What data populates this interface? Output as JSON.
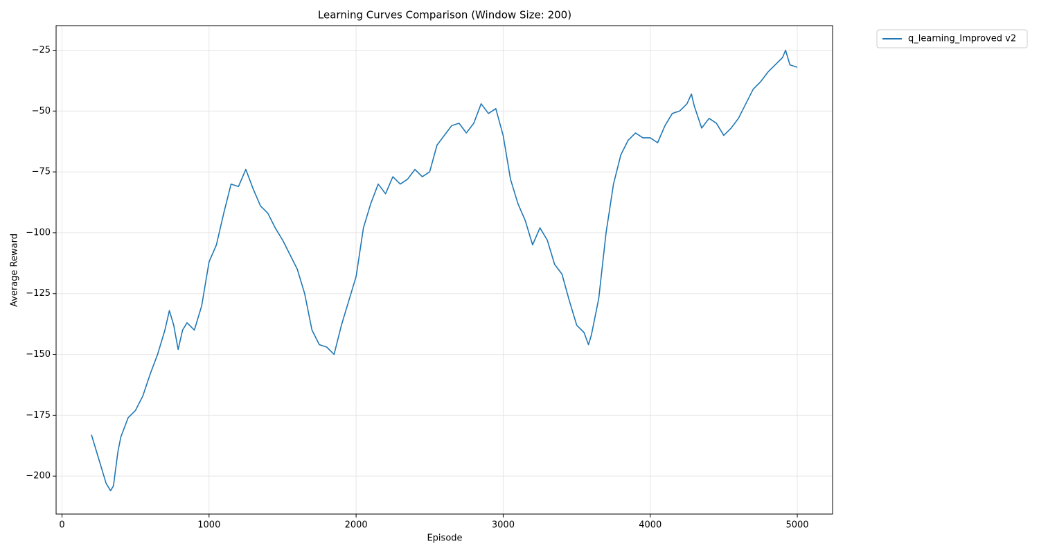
{
  "chart_data": {
    "type": "line",
    "title": "Learning Curves Comparison (Window Size: 200)",
    "x_label": "Episode",
    "y_label": "Average Reward",
    "x": [
      200,
      250,
      300,
      330,
      350,
      380,
      400,
      450,
      500,
      550,
      600,
      650,
      700,
      730,
      760,
      790,
      820,
      850,
      900,
      950,
      1000,
      1050,
      1100,
      1150,
      1200,
      1250,
      1300,
      1350,
      1400,
      1450,
      1500,
      1550,
      1600,
      1650,
      1700,
      1750,
      1800,
      1850,
      1900,
      1950,
      2000,
      2050,
      2100,
      2150,
      2200,
      2250,
      2300,
      2350,
      2400,
      2450,
      2500,
      2550,
      2600,
      2650,
      2700,
      2750,
      2800,
      2850,
      2900,
      2950,
      3000,
      3050,
      3100,
      3150,
      3200,
      3250,
      3300,
      3350,
      3400,
      3450,
      3500,
      3550,
      3580,
      3600,
      3650,
      3700,
      3750,
      3800,
      3850,
      3900,
      3950,
      4000,
      4050,
      4100,
      4150,
      4200,
      4250,
      4280,
      4300,
      4350,
      4400,
      4450,
      4500,
      4550,
      4600,
      4650,
      4700,
      4750,
      4800,
      4850,
      4900,
      4920,
      4950,
      5000
    ],
    "series": [
      {
        "name": "q_learning_Improved v2",
        "color": "#1f77b4",
        "values": [
          -183,
          -193,
          -203,
          -206,
          -204,
          -190,
          -184,
          -176,
          -173,
          -167,
          -158,
          -150,
          -140,
          -132,
          -138,
          -148,
          -140,
          -137,
          -140,
          -130,
          -112,
          -105,
          -92,
          -80,
          -81,
          -74,
          -82,
          -89,
          -92,
          -98,
          -103,
          -109,
          -115,
          -125,
          -140,
          -146,
          -147,
          -150,
          -138,
          -128,
          -118,
          -98,
          -88,
          -80,
          -84,
          -77,
          -80,
          -78,
          -74,
          -77,
          -75,
          -64,
          -60,
          -56,
          -55,
          -59,
          -55,
          -47,
          -51,
          -49,
          -60,
          -78,
          -88,
          -95,
          -105,
          -98,
          -103,
          -113,
          -117,
          -128,
          -138,
          -141,
          -146,
          -142,
          -127,
          -100,
          -80,
          -68,
          -62,
          -59,
          -61,
          -61,
          -63,
          -56,
          -51,
          -50,
          -47,
          -43,
          -48,
          -57,
          -53,
          -55,
          -60,
          -57,
          -53,
          -47,
          -41,
          -38,
          -34,
          -31,
          -28,
          -25,
          -31,
          -32
        ]
      }
    ],
    "xlim": [
      -40,
      5240
    ],
    "ylim": [
      -215.6,
      -14.9
    ],
    "xticks": [
      0,
      1000,
      2000,
      3000,
      4000,
      5000
    ],
    "yticks": [
      {
        "value": -200,
        "label": "−200"
      },
      {
        "value": -175,
        "label": "−175"
      },
      {
        "value": -150,
        "label": "−150"
      },
      {
        "value": -125,
        "label": "−125"
      },
      {
        "value": -100,
        "label": "−100"
      },
      {
        "value": -75,
        "label": "−75"
      },
      {
        "value": -50,
        "label": "−50"
      },
      {
        "value": -25,
        "label": "−25"
      }
    ],
    "grid": true,
    "legend": "outside-upper-right"
  }
}
